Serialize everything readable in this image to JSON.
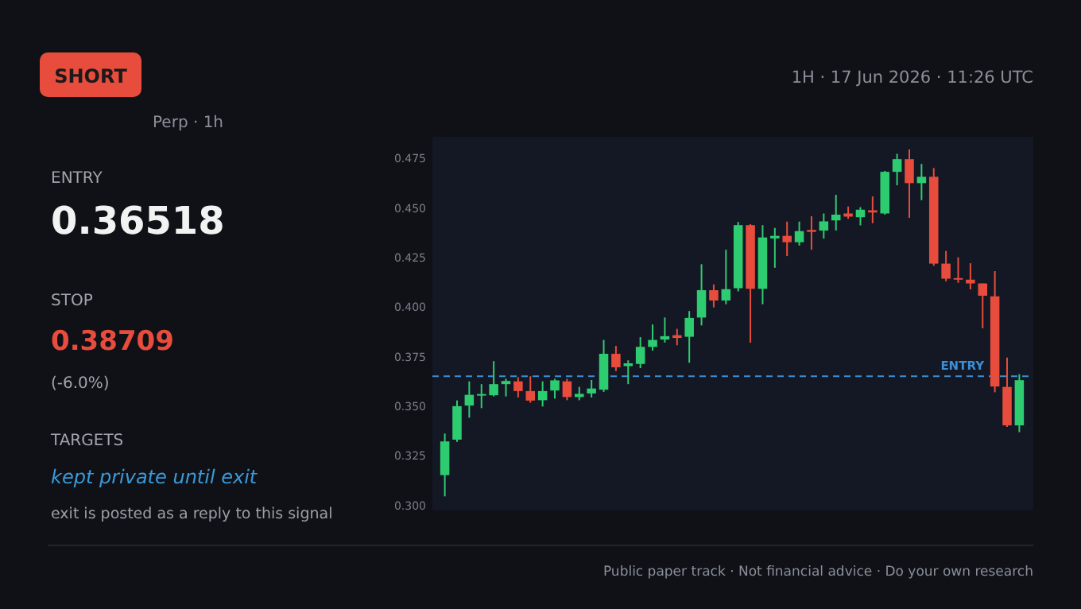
{
  "chart_data": [
    {
      "type": "other",
      "annotations": [
        "SHORT",
        "1H · 17 Jun 2026 · 11:26 UTC",
        "Perp · 1h",
        "ENTRY",
        "0.36518",
        "STOP",
        "0.38709",
        "(-6.0%)",
        "TARGETS",
        "kept private until exit",
        "exit is posted as a reply to this signal",
        "Public paper track · Not financial advice · Do your own research"
      ]
    },
    {
      "type": "candlestick",
      "categories": [
        null,
        null,
        null,
        null,
        null,
        null,
        null,
        null,
        null,
        null,
        null,
        null,
        null,
        null,
        null,
        null,
        null,
        null,
        null,
        null,
        null,
        null,
        null,
        null,
        null,
        null,
        null,
        null,
        null,
        null,
        null,
        null,
        null,
        null,
        null,
        null,
        null,
        null,
        null,
        null,
        null,
        null,
        null,
        null,
        null,
        null,
        null,
        null
      ],
      "ohlc": [
        [
          0.3153,
          0.3363,
          0.3046,
          0.3323
        ],
        [
          0.3332,
          0.353,
          0.3321,
          0.3501
        ],
        [
          0.3504,
          0.3626,
          0.3443,
          0.3558
        ],
        [
          0.3554,
          0.3612,
          0.3491,
          0.3562
        ],
        [
          0.3556,
          0.3728,
          0.355,
          0.3612
        ],
        [
          0.3612,
          0.3639,
          0.355,
          0.3628
        ],
        [
          0.3626,
          0.3647,
          0.3545,
          0.3577
        ],
        [
          0.3577,
          0.3652,
          0.3518,
          0.3529
        ],
        [
          0.3531,
          0.3626,
          0.3499,
          0.3577
        ],
        [
          0.358,
          0.3639,
          0.3539,
          0.3631
        ],
        [
          0.3626,
          0.3639,
          0.3531,
          0.3547
        ],
        [
          0.3547,
          0.3598,
          0.3531,
          0.3563
        ],
        [
          0.3565,
          0.3633,
          0.3545,
          0.359
        ],
        [
          0.3584,
          0.3835,
          0.3573,
          0.3765
        ],
        [
          0.3765,
          0.3805,
          0.3678,
          0.3697
        ],
        [
          0.3703,
          0.3732,
          0.3612,
          0.3717
        ],
        [
          0.3714,
          0.3849,
          0.3693,
          0.38
        ],
        [
          0.38,
          0.3913,
          0.3781,
          0.3835
        ],
        [
          0.3837,
          0.3948,
          0.3822,
          0.3854
        ],
        [
          0.3859,
          0.3891,
          0.3808,
          0.3845
        ],
        [
          0.3851,
          0.3981,
          0.372,
          0.3946
        ],
        [
          0.3948,
          0.4217,
          0.3908,
          0.4086
        ],
        [
          0.4086,
          0.4115,
          0.3999,
          0.4034
        ],
        [
          0.4034,
          0.429,
          0.4015,
          0.4091
        ],
        [
          0.4096,
          0.443,
          0.408,
          0.4414
        ],
        [
          0.4414,
          0.4419,
          0.3821,
          0.4093
        ],
        [
          0.4093,
          0.4414,
          0.4015,
          0.4352
        ],
        [
          0.4347,
          0.44,
          0.4199,
          0.436
        ],
        [
          0.436,
          0.4432,
          0.4258,
          0.4328
        ],
        [
          0.4328,
          0.4432,
          0.4311,
          0.4384
        ],
        [
          0.439,
          0.4459,
          0.429,
          0.438
        ],
        [
          0.4387,
          0.4473,
          0.4346,
          0.4433
        ],
        [
          0.4438,
          0.4567,
          0.4387,
          0.4467
        ],
        [
          0.4473,
          0.4508,
          0.4446,
          0.4457
        ],
        [
          0.4454,
          0.4505,
          0.4413,
          0.4492
        ],
        [
          0.4489,
          0.4559,
          0.4424,
          0.4478
        ],
        [
          0.4473,
          0.4688,
          0.4467,
          0.4683
        ],
        [
          0.4683,
          0.4774,
          0.4615,
          0.4747
        ],
        [
          0.4747,
          0.4796,
          0.4451,
          0.4626
        ],
        [
          0.4626,
          0.4723,
          0.454,
          0.4658
        ],
        [
          0.4658,
          0.4702,
          0.4209,
          0.422
        ],
        [
          0.422,
          0.4284,
          0.4131,
          0.4144
        ],
        [
          0.4147,
          0.4252,
          0.4123,
          0.4139
        ],
        [
          0.4139,
          0.4222,
          0.409,
          0.412
        ],
        [
          0.412,
          0.412,
          0.3894,
          0.4058
        ],
        [
          0.4055,
          0.4182,
          0.3571,
          0.36
        ],
        [
          0.3598,
          0.3746,
          0.3396,
          0.3404
        ],
        [
          0.3404,
          0.3662,
          0.337,
          0.3632
        ]
      ],
      "colors": [
        "#2ecc71",
        "#2ecc71",
        "#2ecc71",
        "#2ecc71",
        "#2ecc71",
        "#2ecc71",
        "#e74c3c",
        "#e74c3c",
        "#2ecc71",
        "#2ecc71",
        "#e74c3c",
        "#2ecc71",
        "#2ecc71",
        "#2ecc71",
        "#e74c3c",
        "#2ecc71",
        "#2ecc71",
        "#2ecc71",
        "#2ecc71",
        "#e74c3c",
        "#2ecc71",
        "#2ecc71",
        "#e74c3c",
        "#2ecc71",
        "#2ecc71",
        "#e74c3c",
        "#2ecc71",
        "#2ecc71",
        "#e74c3c",
        "#2ecc71",
        "#e74c3c",
        "#2ecc71",
        "#2ecc71",
        "#e74c3c",
        "#2ecc71",
        "#e74c3c",
        "#2ecc71",
        "#2ecc71",
        "#e74c3c",
        "#2ecc71",
        "#e74c3c",
        "#e74c3c",
        "#e74c3c",
        "#e74c3c",
        "#e74c3c",
        "#e74c3c",
        "#e74c3c",
        "#2ecc71"
      ],
      "ylim": [
        0.2975,
        0.486
      ],
      "yticks": [
        {
          "value": 0.3,
          "label": "0.300"
        },
        {
          "value": 0.325,
          "label": "0.325"
        },
        {
          "value": 0.35,
          "label": "0.350"
        },
        {
          "value": 0.375,
          "label": "0.375"
        },
        {
          "value": 0.4,
          "label": "0.400"
        },
        {
          "value": 0.425,
          "label": "0.425"
        },
        {
          "value": 0.45,
          "label": "0.450"
        },
        {
          "value": 0.475,
          "label": "0.475"
        }
      ],
      "tick_labels": "y",
      "grid": false,
      "ref_lines": [
        {
          "axis": "y",
          "value": 0.36518,
          "label": "ENTRY",
          "color": "#3a8fd6",
          "line_style": "dashed"
        }
      ]
    }
  ]
}
